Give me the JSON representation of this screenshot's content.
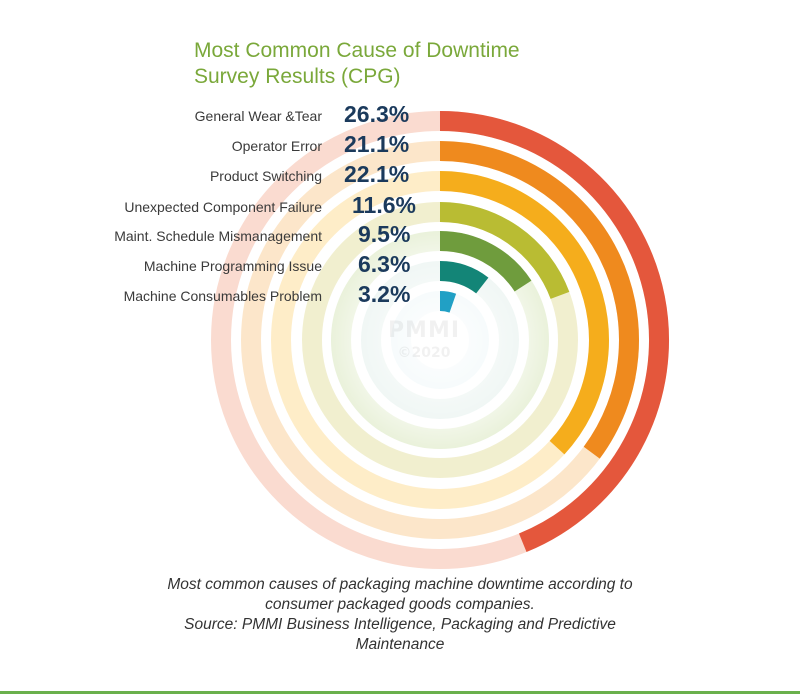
{
  "title_lines": [
    "Most Common Cause of Downtime",
    "Survey Results (CPG)"
  ],
  "watermark": {
    "logo": "PMMI",
    "year": "©2020"
  },
  "caption_lines": [
    "Most common causes of packaging machine downtime according to",
    "consumer packaged goods companies.",
    "Source: PMMI Business Intelligence, Packaging and Predictive",
    "Maintenance"
  ],
  "colors": {
    "title": "#7aa83a",
    "values": "#1b3a5c",
    "rule": "#6ab04c"
  },
  "chart_data": {
    "type": "radial-bar",
    "title": "Most Common Cause of Downtime Survey Results (CPG)",
    "value_unit": "%",
    "categories": [
      "General Wear &Tear",
      "Operator Error",
      "Product Switching",
      "Unexpected Component Failure",
      "Maint. Schedule Mismanagement",
      "Machine Programming Issue",
      "Machine Consumables Problem"
    ],
    "value_labels": [
      "26.3%",
      "21.1%",
      "22.1%",
      "11.6%",
      "9.5%",
      "6.3%",
      "3.2%"
    ],
    "values": [
      26.3,
      21.1,
      22.1,
      11.6,
      9.5,
      6.3,
      3.2
    ],
    "colors": [
      "#e4573c",
      "#ef8a1e",
      "#f5ad1c",
      "#b9bc33",
      "#6f9c3d",
      "#138577",
      "#21a0c5"
    ],
    "track_colors": [
      "#f8cfc0",
      "#fbddb8",
      "#fde7b6",
      "#eceabf",
      "#dde9c6",
      "#cfe4dd",
      "#d2e9ef"
    ],
    "max_value": 30
  }
}
